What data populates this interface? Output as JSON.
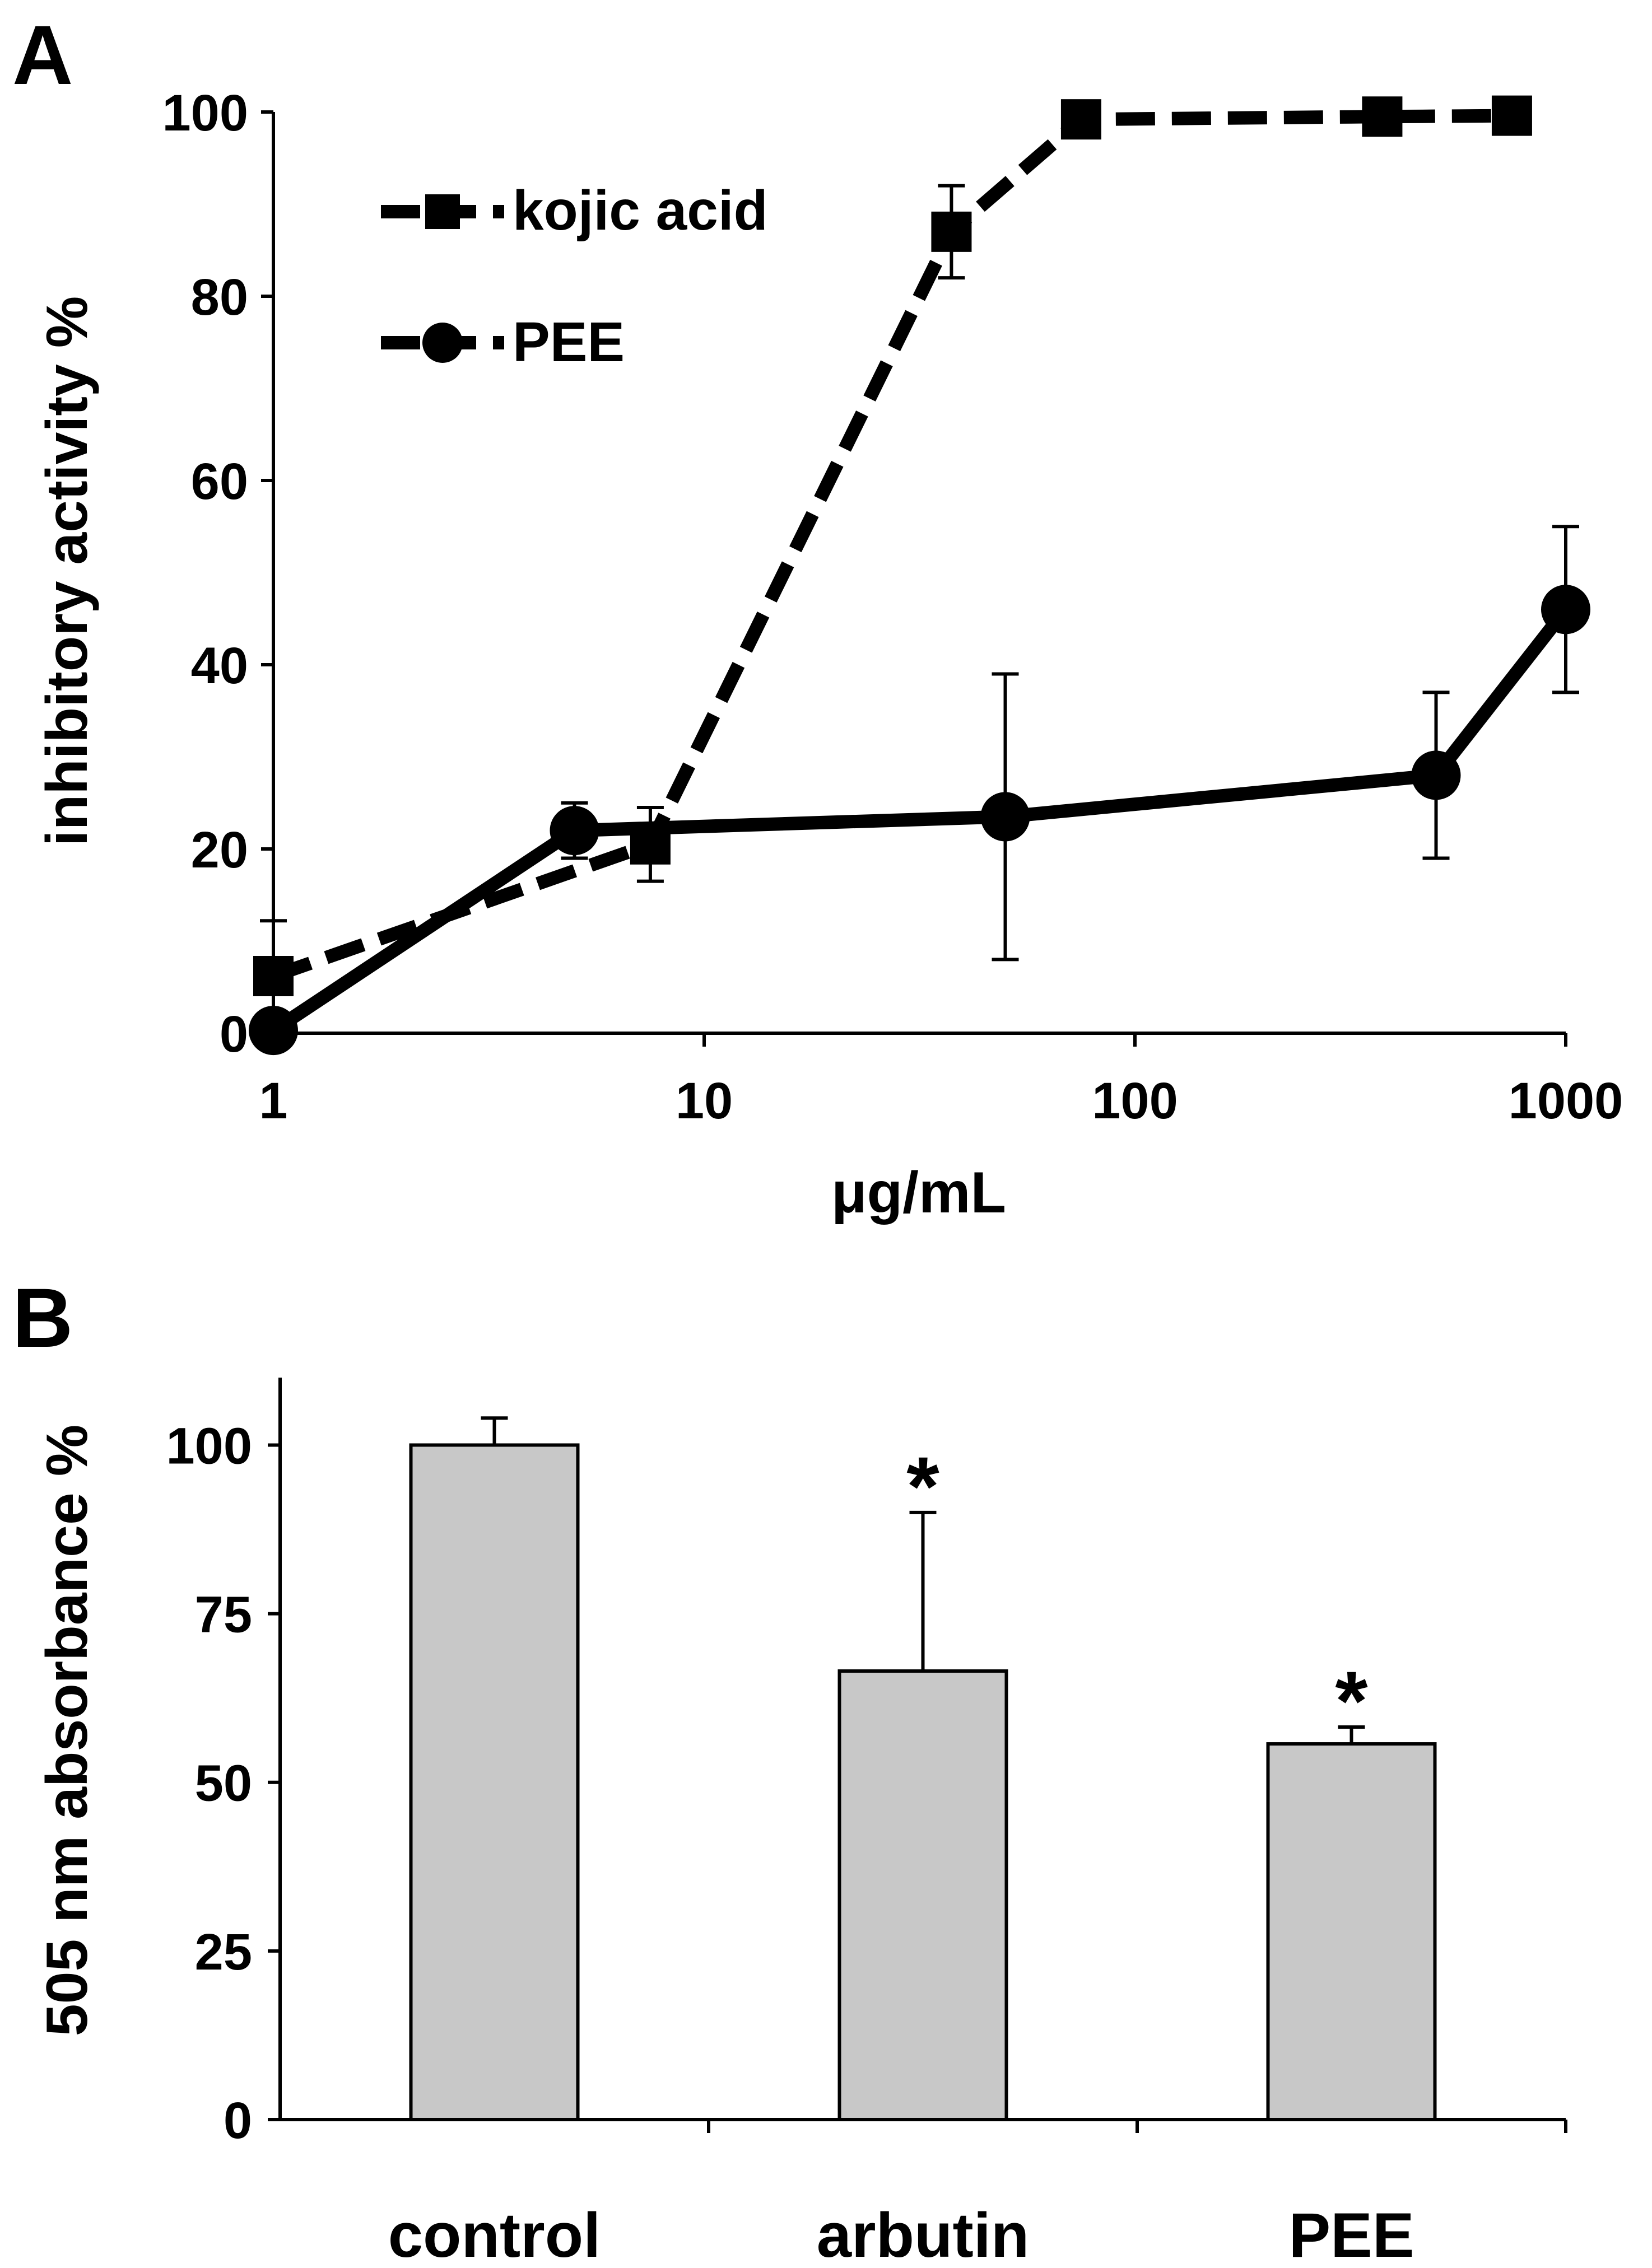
{
  "colors": {
    "ink": "#000000",
    "bar_fill": "#c8c8c8",
    "background": "#ffffff"
  },
  "chart_data": [
    {
      "panel": "A",
      "type": "line",
      "xscale": "log",
      "xlim": [
        1,
        1000
      ],
      "ylim": [
        0,
        100
      ],
      "xticks": [
        "1",
        "10",
        "100",
        "1000"
      ],
      "yticks": [
        "0",
        "20",
        "40",
        "60",
        "80",
        "100"
      ],
      "xlabel": "μg/mL",
      "ylabel": "inhibitory activity %",
      "legend_position": "top-left",
      "series": [
        {
          "name": "kojic acid",
          "style": "dashed",
          "marker": "square",
          "x": [
            1,
            7.5,
            37.5,
            75,
            375,
            750
          ],
          "y": [
            6.2,
            20.5,
            87,
            99.2,
            99.5,
            99.6
          ],
          "err": [
            6,
            4,
            5,
            0,
            0,
            0
          ]
        },
        {
          "name": "PEE",
          "style": "solid",
          "marker": "circle",
          "x": [
            1,
            5,
            50,
            500,
            1000
          ],
          "y": [
            0.3,
            22,
            23.5,
            28,
            46
          ],
          "err": [
            0,
            3,
            15.5,
            9,
            9
          ]
        }
      ]
    },
    {
      "panel": "B",
      "type": "bar",
      "categories": [
        "control",
        "arbutin",
        "PEE"
      ],
      "values": [
        100,
        66.5,
        55.7
      ],
      "err": [
        4,
        23.5,
        2.5
      ],
      "significance": [
        "",
        "*",
        "*"
      ],
      "ylim": [
        0,
        110
      ],
      "yticks": [
        "0",
        "25",
        "50",
        "75",
        "100"
      ],
      "xlabel": "",
      "ylabel": "505 nm absorbance %"
    }
  ]
}
